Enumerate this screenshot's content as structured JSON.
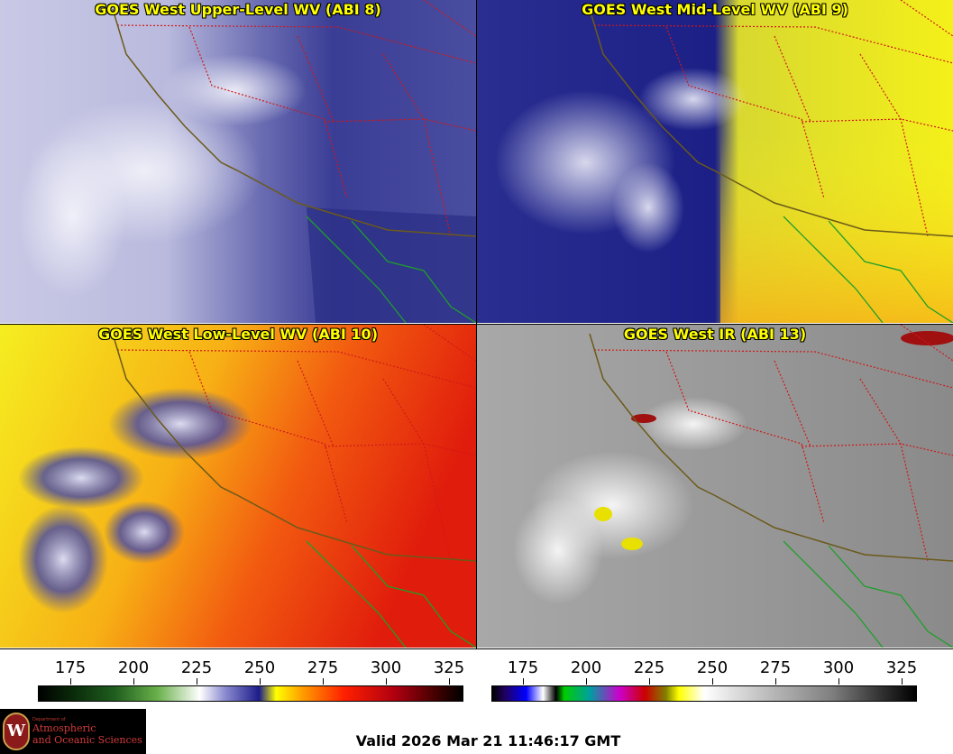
{
  "panels": [
    {
      "title": "GOES West Upper-Level WV (ABI 8)"
    },
    {
      "title": "GOES West Mid-Level WV (ABI 9)"
    },
    {
      "title": "GOES West Low-Level WV (ABI 10)"
    },
    {
      "title": "GOES West IR (ABI 13)"
    }
  ],
  "colorbars": {
    "left": {
      "ticks": [
        "175",
        "200",
        "225",
        "250",
        "275",
        "300",
        "325"
      ]
    },
    "right": {
      "ticks": [
        "175",
        "200",
        "225",
        "250",
        "275",
        "300",
        "325"
      ]
    }
  },
  "logo": {
    "dept": "Department of",
    "line1": "Atmospheric",
    "line2": "and Oceanic Sciences",
    "seal": "W"
  },
  "valid": "Valid 2026 Mar 21 11:46:17 GMT",
  "colors": {
    "title": "#ffff00",
    "state_borders": "#d01818",
    "coast": "#6b5a1a",
    "mexico_coast": "#1f9e2a"
  }
}
